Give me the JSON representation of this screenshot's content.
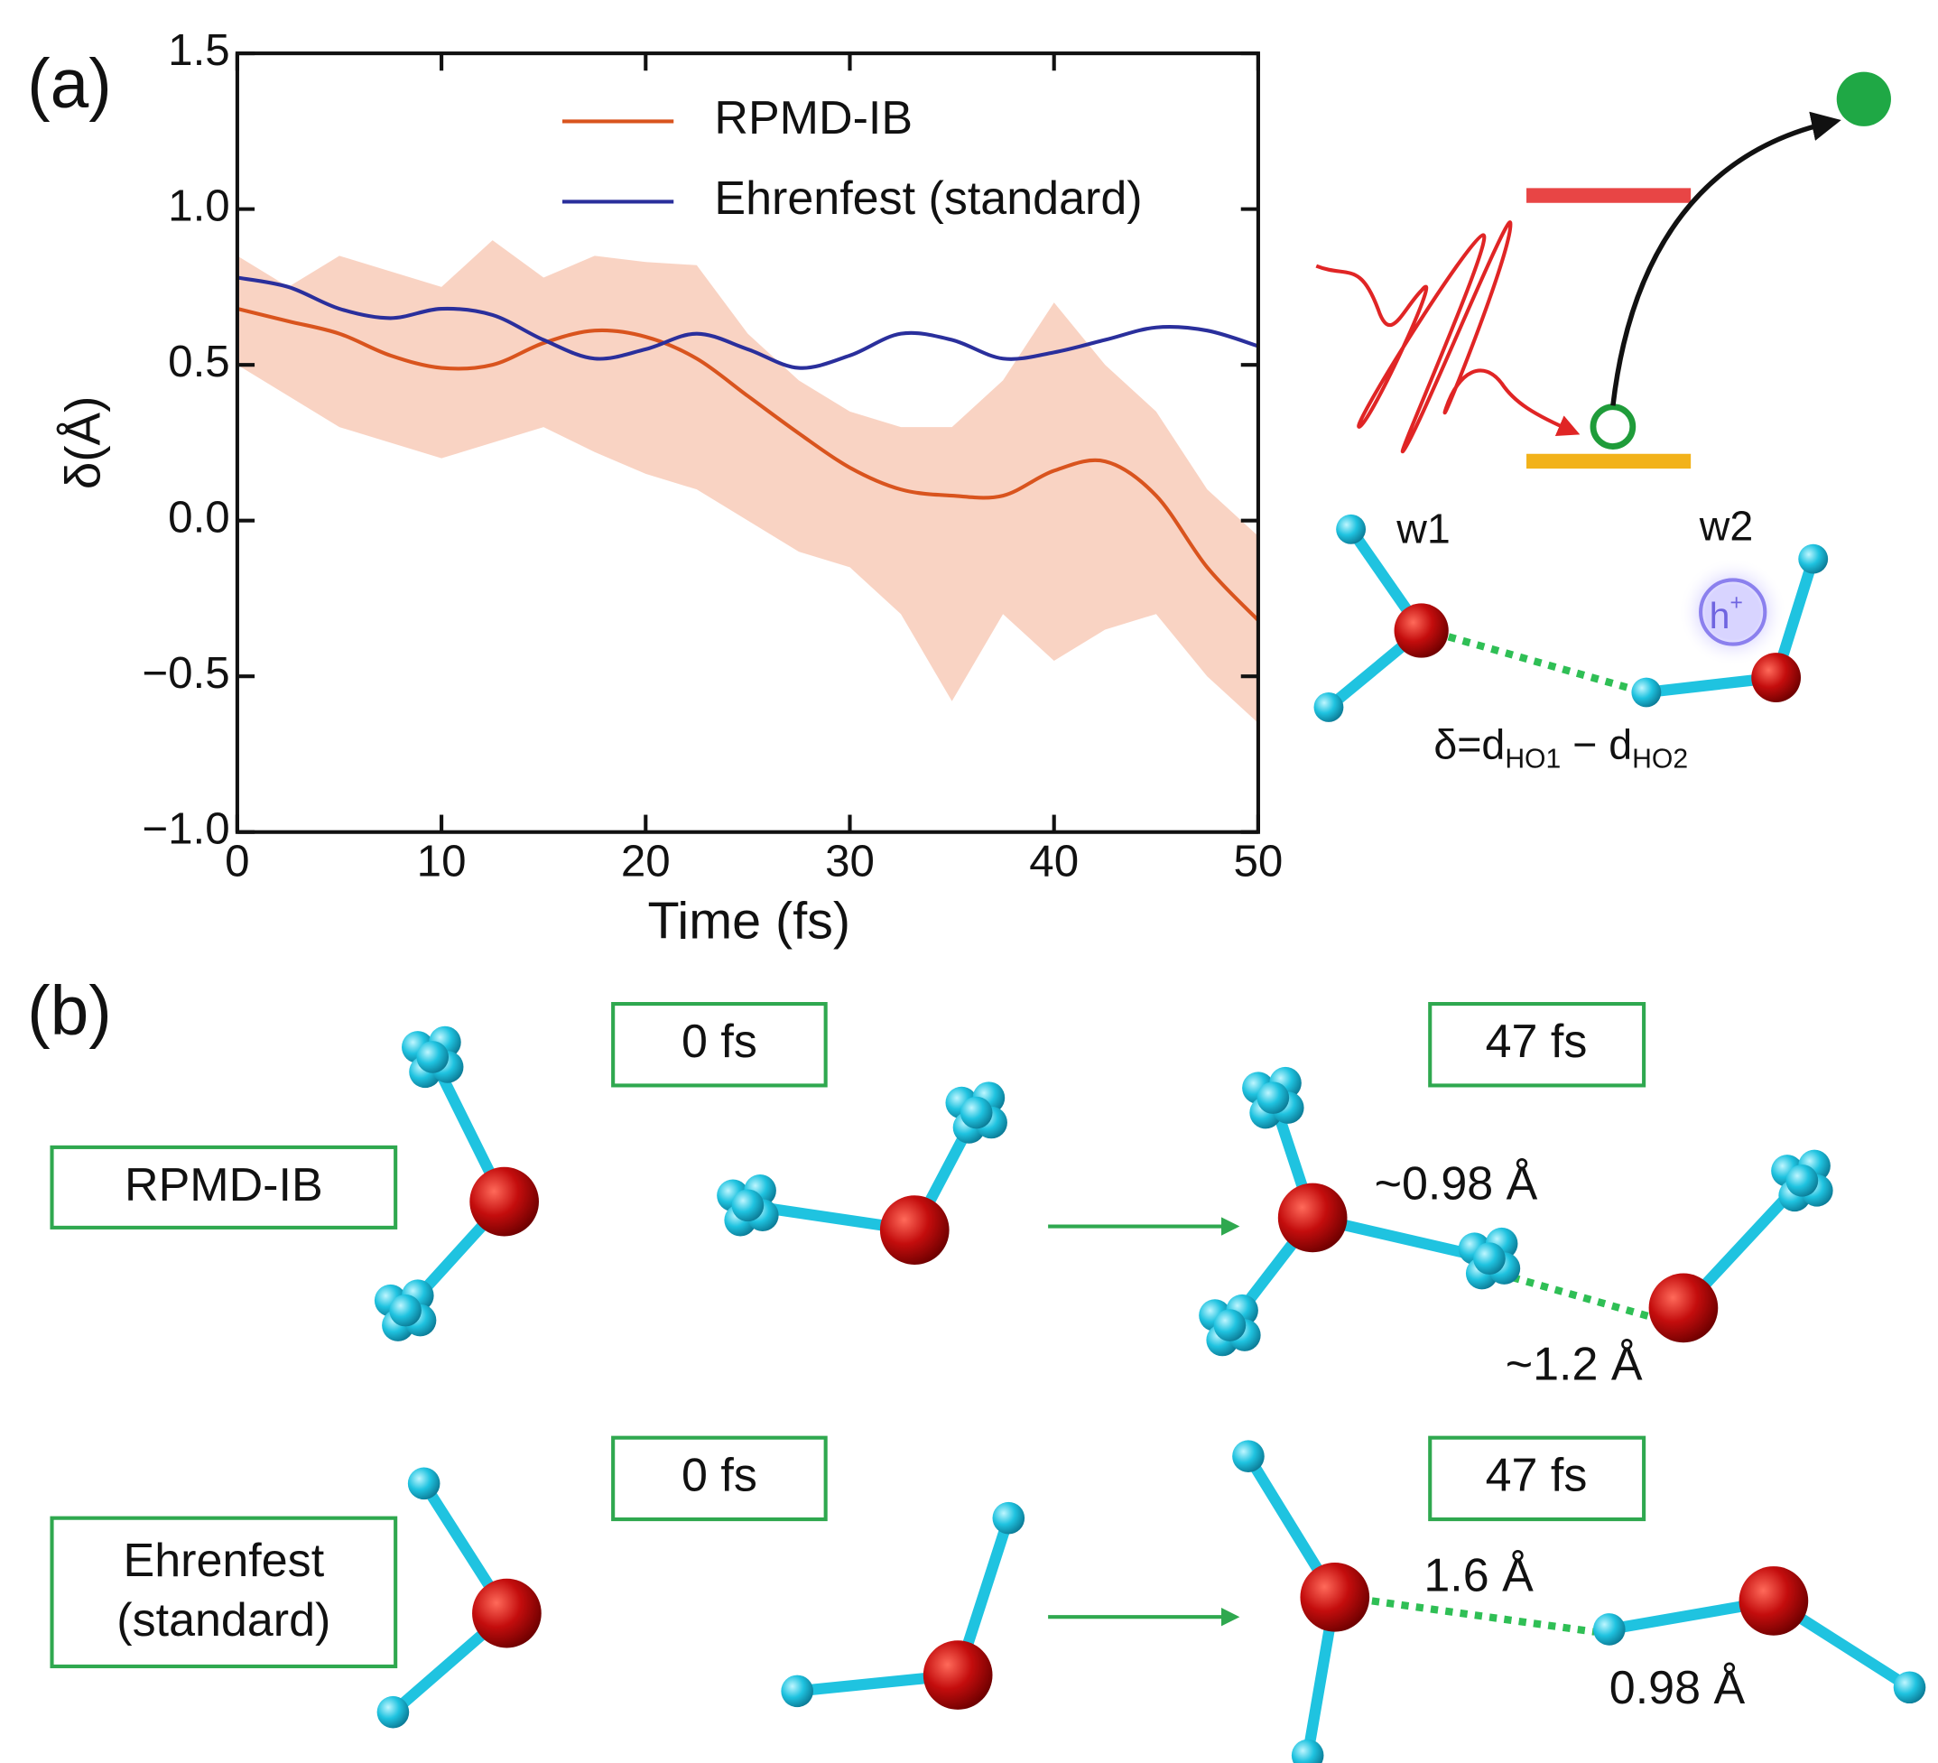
{
  "chart_data": {
    "type": "line",
    "panel_label": "(a)",
    "x_label": "Time (fs)",
    "y_label": "δ(Å)",
    "x": [
      0,
      2.5,
      5,
      7.5,
      10,
      12.5,
      15,
      17.5,
      20,
      22.5,
      25,
      27.5,
      30,
      32.5,
      35,
      37.5,
      40,
      42.5,
      45,
      47.5,
      50
    ],
    "series": [
      {
        "name": "RPMD-IB",
        "color": "#d9541e",
        "band_color": "#f8cbb8",
        "values": [
          0.68,
          0.64,
          0.6,
          0.53,
          0.49,
          0.5,
          0.57,
          0.61,
          0.59,
          0.52,
          0.4,
          0.28,
          0.17,
          0.1,
          0.08,
          0.08,
          0.16,
          0.19,
          0.08,
          -0.15,
          -0.32
        ],
        "band_upper": [
          0.85,
          0.75,
          0.85,
          0.8,
          0.75,
          0.9,
          0.78,
          0.85,
          0.83,
          0.82,
          0.6,
          0.45,
          0.35,
          0.3,
          0.3,
          0.45,
          0.7,
          0.5,
          0.35,
          0.1,
          -0.05
        ],
        "band_lower": [
          0.5,
          0.4,
          0.3,
          0.25,
          0.2,
          0.25,
          0.3,
          0.22,
          0.15,
          0.1,
          0.0,
          -0.1,
          -0.15,
          -0.3,
          -0.58,
          -0.3,
          -0.45,
          -0.35,
          -0.3,
          -0.5,
          -0.65
        ]
      },
      {
        "name": "Ehrenfest (standard)",
        "color": "#2a2f9c",
        "values": [
          0.78,
          0.75,
          0.68,
          0.65,
          0.68,
          0.66,
          0.58,
          0.52,
          0.55,
          0.6,
          0.55,
          0.49,
          0.53,
          0.6,
          0.58,
          0.52,
          0.54,
          0.58,
          0.62,
          0.61,
          0.56
        ]
      }
    ],
    "xlim": [
      0,
      50
    ],
    "xticks": [
      0,
      10,
      20,
      30,
      40,
      50
    ],
    "ylim": [
      -1.0,
      1.5
    ],
    "yticks": [
      {
        "value": -1.0,
        "label": "−1.0"
      },
      {
        "value": -0.5,
        "label": "−0.5"
      },
      {
        "value": 0,
        "label": "0.0"
      },
      {
        "value": 0.5,
        "label": "0.5"
      },
      {
        "value": 1.0,
        "label": "1.0"
      },
      {
        "value": 1.5,
        "label": "1.5"
      }
    ],
    "legend": "upper-right"
  },
  "diagram": {
    "w1": "w1",
    "w2": "w2",
    "hole": "h",
    "hole_sup": "+",
    "delta": [
      "δ=d",
      "HO1",
      " − d",
      "HO2"
    ],
    "panel_label": "(b)",
    "rpmd_label": "RPMD-IB",
    "ehrenfest_label": [
      "Ehrenfest",
      "(standard)"
    ],
    "time_start": "0 fs",
    "time_end": "47 fs",
    "rpmd_bond": "~0.98 Å",
    "rpmd_hbond": "~1.2 Å",
    "ehr_hbond": "1.6 Å",
    "ehr_bond": "0.98 Å"
  }
}
